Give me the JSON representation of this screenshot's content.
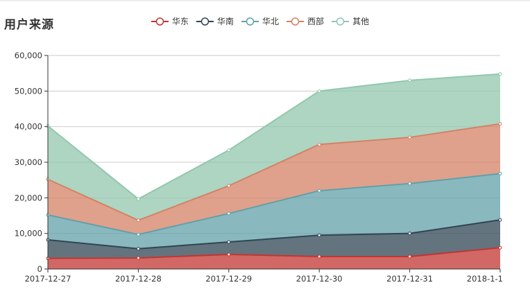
{
  "chart_data": {
    "type": "area",
    "stacked": true,
    "title": "用户来源",
    "categories": [
      "2017-12-27",
      "2017-12-28",
      "2017-12-29",
      "2017-12-30",
      "2017-12-31",
      "2018-1-1"
    ],
    "ylim": [
      0,
      60000
    ],
    "yticks": [
      0,
      10000,
      20000,
      30000,
      40000,
      50000,
      60000
    ],
    "ytick_labels": [
      "0",
      "10,000",
      "20,000",
      "30,000",
      "40,000",
      "50,000",
      "60,000"
    ],
    "grid": true,
    "legend_position": "top",
    "series": [
      {
        "name": "华东",
        "color": "#c23531",
        "values": [
          3000,
          3100,
          4100,
          3500,
          3500,
          6000
        ]
      },
      {
        "name": "华南",
        "color": "#2f4554",
        "values": [
          5200,
          2600,
          3500,
          6000,
          6500,
          7800
        ]
      },
      {
        "name": "华北",
        "color": "#61a0a8",
        "values": [
          7000,
          4000,
          8000,
          12500,
          14000,
          13000
        ]
      },
      {
        "name": "西部",
        "color": "#d48265",
        "values": [
          10000,
          4000,
          7800,
          13000,
          13000,
          14000
        ]
      },
      {
        "name": "其他",
        "color": "#91c7ae",
        "values": [
          15000,
          6000,
          10000,
          15000,
          16000,
          14000
        ]
      }
    ]
  }
}
